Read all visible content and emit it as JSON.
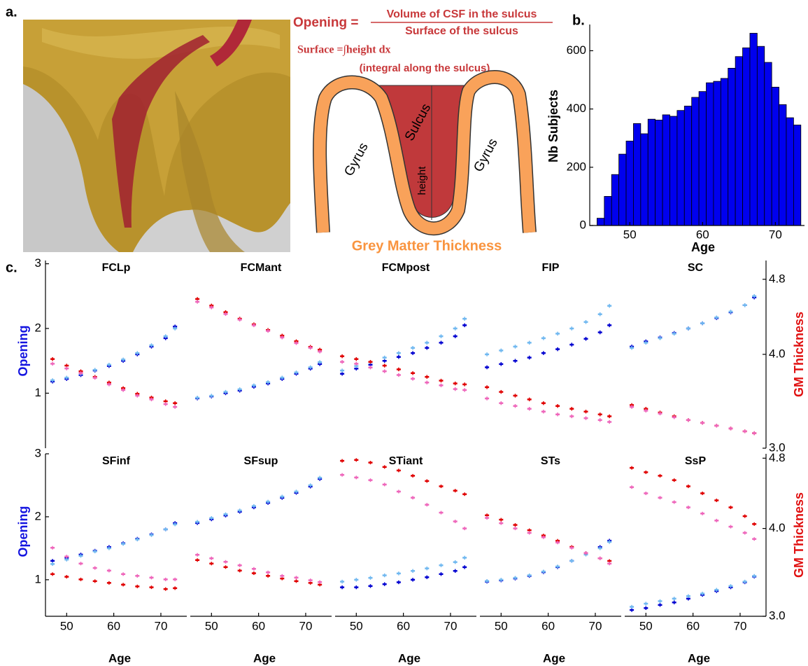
{
  "panel_a": {
    "label": "a.",
    "formula_lhs": "Opening =",
    "numerator": "Volume of CSF in the sulcus",
    "denominator": "Surface of the sulcus",
    "surface_formula": "Surface =∫height dx",
    "surface_note": "(integral along the sulcus)",
    "gyrus_left": "Gyrus",
    "sulcus": "Sulcus",
    "height": "height",
    "gyrus_right": "Gyrus",
    "thickness": "Grey Matter Thickness"
  },
  "chart_data": [
    {
      "type": "histogram",
      "panel_label": "b.",
      "ylabel": "Nb Subjects",
      "xlabel": "Age",
      "color": "#0000ee",
      "bins": [
        45.5,
        46.5,
        47.5,
        48.5,
        49.5,
        50.5,
        51.5,
        52.5,
        53.5,
        54.5,
        55.5,
        56.5,
        57.5,
        58.5,
        59.5,
        60.5,
        61.5,
        62.5,
        63.5,
        64.5,
        65.5,
        66.5,
        67.5,
        68.5,
        69.5,
        70.5,
        71.5,
        72.5,
        73.5
      ],
      "values": [
        25,
        100,
        175,
        245,
        290,
        350,
        315,
        365,
        362,
        380,
        375,
        395,
        410,
        440,
        460,
        490,
        495,
        505,
        540,
        580,
        610,
        660,
        615,
        560,
        475,
        415,
        370,
        345
      ],
      "xlim": [
        44.5,
        74
      ],
      "ylim": [
        0,
        690
      ],
      "xticks": [
        50,
        60,
        70
      ],
      "yticks": [
        0,
        200,
        400,
        600
      ]
    },
    {
      "type": "errorbar",
      "panel_label": "c.",
      "title": "FCLp",
      "ylabel": "Opening",
      "x": [
        47,
        50,
        53,
        56,
        59,
        62,
        65,
        68,
        71,
        73
      ],
      "xlim": [
        45.5,
        75.5
      ],
      "ylim": [
        0.15,
        3.05
      ],
      "y2lim": [
        3.0,
        5.0
      ],
      "yticks": [
        1,
        2,
        3
      ],
      "series": [
        {
          "color": "#0000d0",
          "error": 0.03,
          "values": [
            1.18,
            1.22,
            1.28,
            1.35,
            1.42,
            1.5,
            1.6,
            1.72,
            1.85,
            2.03
          ]
        },
        {
          "color": "#70b8f0",
          "error": 0.03,
          "values": [
            1.2,
            1.24,
            1.3,
            1.36,
            1.44,
            1.52,
            1.62,
            1.74,
            1.88,
            2.0
          ]
        },
        {
          "color": "#e00000",
          "axis": "y2",
          "error": 0.02,
          "values": [
            3.95,
            3.88,
            3.82,
            3.76,
            3.7,
            3.64,
            3.58,
            3.54,
            3.5,
            3.48
          ]
        },
        {
          "color": "#ee66bb",
          "axis": "y2",
          "error": 0.02,
          "values": [
            3.9,
            3.85,
            3.8,
            3.75,
            3.68,
            3.62,
            3.56,
            3.52,
            3.47,
            3.44
          ]
        }
      ]
    },
    {
      "type": "errorbar",
      "title": "FCMant",
      "x": [
        47,
        50,
        53,
        56,
        59,
        62,
        65,
        68,
        71,
        73
      ],
      "xlim": [
        45.5,
        75.5
      ],
      "ylim": [
        0.15,
        3.05
      ],
      "y2lim": [
        3.0,
        5.0
      ],
      "series": [
        {
          "color": "#0000d0",
          "error": 0.03,
          "values": [
            0.92,
            0.95,
            1.0,
            1.04,
            1.1,
            1.15,
            1.22,
            1.3,
            1.38,
            1.45
          ]
        },
        {
          "color": "#70b8f0",
          "error": 0.03,
          "values": [
            0.93,
            0.96,
            1.02,
            1.06,
            1.12,
            1.17,
            1.24,
            1.32,
            1.4,
            1.48
          ]
        },
        {
          "color": "#e00000",
          "axis": "y2",
          "error": 0.02,
          "values": [
            4.59,
            4.52,
            4.45,
            4.38,
            4.32,
            4.26,
            4.2,
            4.14,
            4.08,
            4.05
          ]
        },
        {
          "color": "#ee66bb",
          "axis": "y2",
          "error": 0.02,
          "values": [
            4.56,
            4.5,
            4.43,
            4.37,
            4.31,
            4.25,
            4.18,
            4.12,
            4.07,
            4.03
          ]
        }
      ]
    },
    {
      "type": "errorbar",
      "title": "FCMpost",
      "x": [
        47,
        50,
        53,
        56,
        59,
        62,
        65,
        68,
        71,
        73
      ],
      "xlim": [
        45.5,
        75.5
      ],
      "ylim": [
        0.15,
        3.05
      ],
      "y2lim": [
        3.0,
        5.0
      ],
      "series": [
        {
          "color": "#0000d0",
          "error": 0.03,
          "values": [
            1.3,
            1.38,
            1.44,
            1.5,
            1.56,
            1.62,
            1.7,
            1.78,
            1.88,
            2.05
          ]
        },
        {
          "color": "#70b8f0",
          "error": 0.03,
          "values": [
            1.35,
            1.42,
            1.48,
            1.55,
            1.62,
            1.7,
            1.78,
            1.88,
            2.0,
            2.15
          ]
        },
        {
          "color": "#e00000",
          "axis": "y2",
          "error": 0.02,
          "values": [
            3.98,
            3.95,
            3.92,
            3.88,
            3.84,
            3.8,
            3.76,
            3.72,
            3.69,
            3.68
          ]
        },
        {
          "color": "#ee66bb",
          "axis": "y2",
          "error": 0.02,
          "values": [
            3.92,
            3.9,
            3.86,
            3.82,
            3.78,
            3.74,
            3.7,
            3.67,
            3.63,
            3.62
          ]
        }
      ]
    },
    {
      "type": "errorbar",
      "title": "FIP",
      "x": [
        47,
        50,
        53,
        56,
        59,
        62,
        65,
        68,
        71,
        73
      ],
      "xlim": [
        45.5,
        75.5
      ],
      "ylim": [
        0.15,
        3.05
      ],
      "y2lim": [
        3.0,
        5.0
      ],
      "series": [
        {
          "color": "#0000d0",
          "error": 0.03,
          "values": [
            1.4,
            1.45,
            1.5,
            1.55,
            1.62,
            1.68,
            1.75,
            1.84,
            1.94,
            2.05
          ]
        },
        {
          "color": "#70b8f0",
          "error": 0.03,
          "values": [
            1.6,
            1.66,
            1.72,
            1.78,
            1.85,
            1.92,
            2.0,
            2.1,
            2.22,
            2.35
          ]
        },
        {
          "color": "#e00000",
          "axis": "y2",
          "error": 0.02,
          "values": [
            3.65,
            3.6,
            3.56,
            3.52,
            3.48,
            3.45,
            3.42,
            3.39,
            3.36,
            3.34
          ]
        },
        {
          "color": "#ee66bb",
          "axis": "y2",
          "error": 0.02,
          "values": [
            3.53,
            3.48,
            3.45,
            3.42,
            3.39,
            3.36,
            3.34,
            3.32,
            3.3,
            3.28
          ]
        }
      ]
    },
    {
      "type": "errorbar",
      "title": "SC",
      "y2label": "GM Thickness",
      "x": [
        47,
        50,
        53,
        56,
        59,
        62,
        65,
        68,
        71,
        73
      ],
      "xlim": [
        45.5,
        75.5
      ],
      "ylim": [
        0.15,
        3.05
      ],
      "y2lim": [
        3.0,
        5.0
      ],
      "y2ticks": [
        {
          "value": 3,
          "label": "3.0"
        },
        {
          "value": 4,
          "label": "4.0"
        },
        4.8
      ],
      "series": [
        {
          "color": "#0000d0",
          "error": 0.03,
          "values": [
            1.72,
            1.8,
            1.86,
            1.93,
            2.0,
            2.08,
            2.16,
            2.25,
            2.36,
            2.48
          ]
        },
        {
          "color": "#70b8f0",
          "error": 0.03,
          "values": [
            1.7,
            1.78,
            1.85,
            1.92,
            2.0,
            2.08,
            2.17,
            2.26,
            2.36,
            2.5
          ]
        },
        {
          "color": "#e00000",
          "axis": "y2",
          "error": 0.02,
          "values": [
            3.46,
            3.42,
            3.38,
            3.34,
            3.3,
            3.27,
            3.24,
            3.21,
            3.18,
            3.16
          ]
        },
        {
          "color": "#ee66bb",
          "axis": "y2",
          "error": 0.02,
          "values": [
            3.44,
            3.4,
            3.37,
            3.33,
            3.3,
            3.27,
            3.24,
            3.21,
            3.18,
            3.16
          ]
        }
      ]
    },
    {
      "type": "errorbar",
      "title": "SFinf",
      "ylabel": "Opening",
      "xlabel": "Age",
      "x": [
        47,
        50,
        53,
        56,
        59,
        62,
        65,
        68,
        71,
        73
      ],
      "xlim": [
        45.5,
        75.5
      ],
      "ylim": [
        0.42,
        3.0
      ],
      "y2lim": [
        3.0,
        4.85
      ],
      "yticks": [
        1,
        2,
        3
      ],
      "xticks": [
        50,
        60,
        70
      ],
      "series": [
        {
          "color": "#0000d0",
          "error": 0.03,
          "values": [
            1.3,
            1.35,
            1.4,
            1.46,
            1.52,
            1.58,
            1.65,
            1.72,
            1.8,
            1.9
          ]
        },
        {
          "color": "#70b8f0",
          "error": 0.03,
          "values": [
            1.25,
            1.32,
            1.38,
            1.45,
            1.5,
            1.57,
            1.64,
            1.71,
            1.8,
            1.88
          ]
        },
        {
          "color": "#e00000",
          "axis": "y2",
          "error": 0.02,
          "values": [
            3.48,
            3.45,
            3.42,
            3.4,
            3.38,
            3.36,
            3.34,
            3.33,
            3.31,
            3.32
          ]
        },
        {
          "color": "#ee66bb",
          "axis": "y2",
          "error": 0.02,
          "values": [
            3.78,
            3.68,
            3.6,
            3.55,
            3.52,
            3.48,
            3.46,
            3.44,
            3.42,
            3.42
          ]
        }
      ]
    },
    {
      "type": "errorbar",
      "title": "SFsup",
      "xlabel": "Age",
      "x": [
        47,
        50,
        53,
        56,
        59,
        62,
        65,
        68,
        71,
        73
      ],
      "xlim": [
        45.5,
        75.5
      ],
      "ylim": [
        0.42,
        3.0
      ],
      "y2lim": [
        3.0,
        4.85
      ],
      "xticks": [
        50,
        60,
        70
      ],
      "series": [
        {
          "color": "#0000d0",
          "error": 0.03,
          "values": [
            1.9,
            1.96,
            2.02,
            2.08,
            2.15,
            2.22,
            2.3,
            2.38,
            2.48,
            2.6
          ]
        },
        {
          "color": "#70b8f0",
          "error": 0.03,
          "values": [
            1.92,
            1.98,
            2.04,
            2.1,
            2.17,
            2.24,
            2.32,
            2.4,
            2.5,
            2.62
          ]
        },
        {
          "color": "#e00000",
          "axis": "y2",
          "error": 0.02,
          "values": [
            3.64,
            3.6,
            3.56,
            3.52,
            3.49,
            3.46,
            3.43,
            3.4,
            3.38,
            3.36
          ]
        },
        {
          "color": "#ee66bb",
          "axis": "y2",
          "error": 0.02,
          "values": [
            3.7,
            3.66,
            3.62,
            3.58,
            3.54,
            3.5,
            3.46,
            3.44,
            3.41,
            3.39
          ]
        }
      ]
    },
    {
      "type": "errorbar",
      "title": "STiant",
      "xlabel": "Age",
      "x": [
        47,
        50,
        53,
        56,
        59,
        62,
        65,
        68,
        71,
        73
      ],
      "xlim": [
        45.5,
        75.5
      ],
      "ylim": [
        0.42,
        3.0
      ],
      "y2lim": [
        3.0,
        4.85
      ],
      "xticks": [
        50,
        60,
        70
      ],
      "series": [
        {
          "color": "#0000d0",
          "error": 0.03,
          "values": [
            0.88,
            0.88,
            0.9,
            0.93,
            0.96,
            1.0,
            1.04,
            1.09,
            1.14,
            1.2
          ]
        },
        {
          "color": "#70b8f0",
          "error": 0.03,
          "values": [
            0.97,
            1.0,
            1.03,
            1.07,
            1.1,
            1.14,
            1.18,
            1.23,
            1.28,
            1.35
          ]
        },
        {
          "color": "#e00000",
          "axis": "y2",
          "error": 0.02,
          "values": [
            4.77,
            4.78,
            4.75,
            4.7,
            4.66,
            4.6,
            4.54,
            4.48,
            4.43,
            4.39
          ]
        },
        {
          "color": "#ee66bb",
          "axis": "y2",
          "error": 0.02,
          "values": [
            4.61,
            4.58,
            4.55,
            4.5,
            4.42,
            4.35,
            4.27,
            4.18,
            4.08,
            4.0
          ]
        }
      ]
    },
    {
      "type": "errorbar",
      "title": "STs",
      "xlabel": "Age",
      "x": [
        47,
        50,
        53,
        56,
        59,
        62,
        65,
        68,
        71,
        73
      ],
      "xlim": [
        45.5,
        75.5
      ],
      "ylim": [
        0.42,
        3.0
      ],
      "y2lim": [
        3.0,
        4.85
      ],
      "xticks": [
        50,
        60,
        70
      ],
      "series": [
        {
          "color": "#0000d0",
          "error": 0.03,
          "values": [
            0.97,
            0.99,
            1.02,
            1.06,
            1.12,
            1.2,
            1.3,
            1.42,
            1.52,
            1.62
          ]
        },
        {
          "color": "#70b8f0",
          "error": 0.03,
          "values": [
            0.98,
            1.0,
            1.03,
            1.07,
            1.13,
            1.21,
            1.3,
            1.4,
            1.5,
            1.6
          ]
        },
        {
          "color": "#e00000",
          "axis": "y2",
          "error": 0.02,
          "values": [
            4.15,
            4.1,
            4.04,
            3.98,
            3.92,
            3.86,
            3.79,
            3.72,
            3.66,
            3.63
          ]
        },
        {
          "color": "#ee66bb",
          "axis": "y2",
          "error": 0.02,
          "values": [
            4.12,
            4.06,
            4.0,
            3.95,
            3.9,
            3.84,
            3.78,
            3.72,
            3.66,
            3.6
          ]
        }
      ]
    },
    {
      "type": "errorbar",
      "title": "SsP",
      "xlabel": "Age",
      "y2label": "GM Thickness",
      "x": [
        47,
        50,
        53,
        56,
        59,
        62,
        65,
        68,
        71,
        73
      ],
      "xlim": [
        45.5,
        75.5
      ],
      "ylim": [
        0.42,
        3.0
      ],
      "y2lim": [
        3.0,
        4.85
      ],
      "xticks": [
        50,
        60,
        70
      ],
      "y2ticks": [
        {
          "value": 3,
          "label": "3.0"
        },
        {
          "value": 4,
          "label": "4.0"
        },
        4.8
      ],
      "series": [
        {
          "color": "#0000d0",
          "error": 0.03,
          "values": [
            0.52,
            0.55,
            0.6,
            0.64,
            0.7,
            0.76,
            0.82,
            0.88,
            0.96,
            1.05
          ]
        },
        {
          "color": "#70b8f0",
          "error": 0.03,
          "values": [
            0.57,
            0.62,
            0.66,
            0.7,
            0.74,
            0.78,
            0.84,
            0.9,
            0.97,
            1.06
          ]
        },
        {
          "color": "#e00000",
          "axis": "y2",
          "error": 0.02,
          "values": [
            4.69,
            4.64,
            4.6,
            4.55,
            4.48,
            4.4,
            4.32,
            4.24,
            4.14,
            4.05
          ]
        },
        {
          "color": "#ee66bb",
          "axis": "y2",
          "error": 0.02,
          "values": [
            4.47,
            4.4,
            4.35,
            4.3,
            4.24,
            4.17,
            4.09,
            4.02,
            3.95,
            3.88
          ]
        }
      ]
    }
  ]
}
